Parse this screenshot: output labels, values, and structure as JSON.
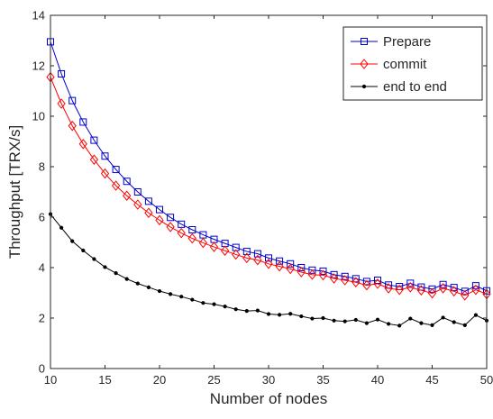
{
  "chart_data": {
    "type": "line",
    "title": "",
    "xlabel": "Number of nodes",
    "ylabel": "Throughput [TRX/s]",
    "xlim": [
      10,
      50
    ],
    "ylim": [
      0,
      14
    ],
    "xticks": [
      10,
      15,
      20,
      25,
      30,
      35,
      40,
      45,
      50
    ],
    "yticks": [
      0,
      2,
      4,
      6,
      8,
      10,
      12,
      14
    ],
    "grid": false,
    "legend_position": "top-right",
    "x": [
      10,
      11,
      12,
      13,
      14,
      15,
      16,
      17,
      18,
      19,
      20,
      21,
      22,
      23,
      24,
      25,
      26,
      27,
      28,
      29,
      30,
      31,
      32,
      33,
      34,
      35,
      36,
      37,
      38,
      39,
      40,
      41,
      42,
      43,
      44,
      45,
      46,
      47,
      48,
      49,
      50
    ],
    "series": [
      {
        "name": "Prepare",
        "color": "#0000cc",
        "marker": "square",
        "values": [
          12.95,
          11.68,
          10.62,
          9.77,
          9.05,
          8.42,
          7.89,
          7.42,
          7.0,
          6.63,
          6.3,
          5.99,
          5.72,
          5.5,
          5.3,
          5.12,
          4.96,
          4.8,
          4.64,
          4.55,
          4.38,
          4.26,
          4.15,
          4.0,
          3.9,
          3.86,
          3.72,
          3.65,
          3.56,
          3.45,
          3.5,
          3.31,
          3.25,
          3.38,
          3.23,
          3.15,
          3.33,
          3.21,
          3.06,
          3.28,
          3.08
        ]
      },
      {
        "name": "commit",
        "color": "#ff0000",
        "marker": "diamond",
        "values": [
          11.55,
          10.5,
          9.62,
          8.9,
          8.28,
          7.73,
          7.25,
          6.85,
          6.5,
          6.17,
          5.88,
          5.61,
          5.37,
          5.16,
          4.98,
          4.82,
          4.67,
          4.52,
          4.38,
          4.3,
          4.15,
          4.05,
          3.95,
          3.82,
          3.72,
          3.7,
          3.57,
          3.5,
          3.42,
          3.3,
          3.36,
          3.18,
          3.12,
          3.22,
          3.1,
          2.98,
          3.18,
          3.06,
          2.9,
          3.12,
          2.95
        ]
      },
      {
        "name": "end to end",
        "color": "#000000",
        "marker": "dot",
        "values": [
          6.12,
          5.58,
          5.05,
          4.68,
          4.34,
          4.02,
          3.78,
          3.55,
          3.37,
          3.22,
          3.07,
          2.95,
          2.85,
          2.73,
          2.6,
          2.55,
          2.46,
          2.35,
          2.28,
          2.3,
          2.16,
          2.13,
          2.17,
          2.07,
          1.98,
          2.0,
          1.9,
          1.87,
          1.93,
          1.8,
          1.94,
          1.77,
          1.7,
          1.98,
          1.8,
          1.72,
          2.02,
          1.84,
          1.72,
          2.12,
          1.9
        ]
      }
    ]
  }
}
